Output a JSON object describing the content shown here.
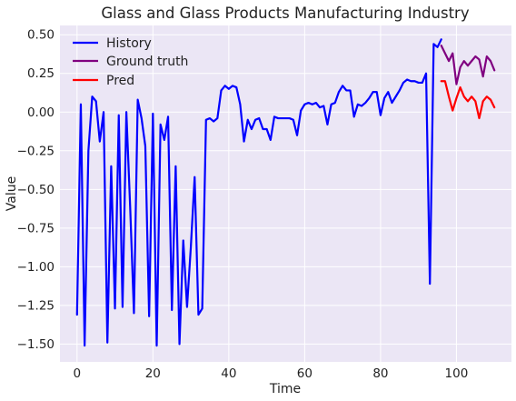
{
  "chart_data": {
    "type": "line",
    "title": "Glass and Glass Products Manufacturing Industry",
    "xlabel": "Time",
    "ylabel": "Value",
    "xlim": [
      -4.5,
      114.5
    ],
    "ylim": [
      -1.615,
      0.56
    ],
    "xticks": [
      0,
      20,
      40,
      60,
      80,
      100
    ],
    "yticks": [
      -1.5,
      -1.25,
      -1.0,
      -0.75,
      -0.5,
      -0.25,
      0.0,
      0.25,
      0.5
    ],
    "ytick_labels": [
      "−1.50",
      "−1.25",
      "−1.00",
      "−0.75",
      "−0.50",
      "−0.25",
      "0.00",
      "0.25",
      "0.50"
    ],
    "grid": true,
    "background": "#ebe6f5",
    "legend_position": "upper-left",
    "series": [
      {
        "name": "History",
        "color": "#0000ff",
        "x_start": 0,
        "values": [
          -1.31,
          0.05,
          -1.51,
          -0.25,
          0.1,
          0.07,
          -0.19,
          0.0,
          -1.49,
          -0.35,
          -1.27,
          -0.02,
          -1.26,
          0.0,
          -0.61,
          -1.3,
          0.08,
          -0.04,
          -0.22,
          -1.32,
          -0.01,
          -1.51,
          -0.08,
          -0.18,
          -0.03,
          -1.28,
          -0.35,
          -1.5,
          -0.83,
          -1.26,
          -0.87,
          -0.42,
          -1.31,
          -1.27,
          -0.05,
          -0.04,
          -0.06,
          -0.04,
          0.14,
          0.17,
          0.15,
          0.17,
          0.16,
          0.05,
          -0.19,
          -0.05,
          -0.11,
          -0.05,
          -0.04,
          -0.11,
          -0.11,
          -0.18,
          -0.03,
          -0.04,
          -0.04,
          -0.04,
          -0.04,
          -0.05,
          -0.15,
          0.01,
          0.05,
          0.06,
          0.05,
          0.06,
          0.03,
          0.04,
          -0.08,
          0.05,
          0.06,
          0.13,
          0.17,
          0.14,
          0.14,
          -0.03,
          0.05,
          0.04,
          0.06,
          0.09,
          0.13,
          0.13,
          -0.02,
          0.09,
          0.13,
          0.06,
          0.1,
          0.14,
          0.19,
          0.21,
          0.2,
          0.2,
          0.19,
          0.19,
          0.25,
          -1.11,
          0.44,
          0.42,
          0.47
        ]
      },
      {
        "name": "Ground truth",
        "color": "#800080",
        "x_start": 96,
        "values": [
          0.43,
          0.38,
          0.33,
          0.38,
          0.18,
          0.29,
          0.33,
          0.3,
          0.33,
          0.36,
          0.34,
          0.23,
          0.36,
          0.33,
          0.27
        ]
      },
      {
        "name": "Pred",
        "color": "#ff0000",
        "x_start": 96,
        "values": [
          0.2,
          0.2,
          0.1,
          0.01,
          0.09,
          0.16,
          0.1,
          0.07,
          0.1,
          0.07,
          -0.04,
          0.07,
          0.1,
          0.08,
          0.03
        ]
      }
    ]
  }
}
